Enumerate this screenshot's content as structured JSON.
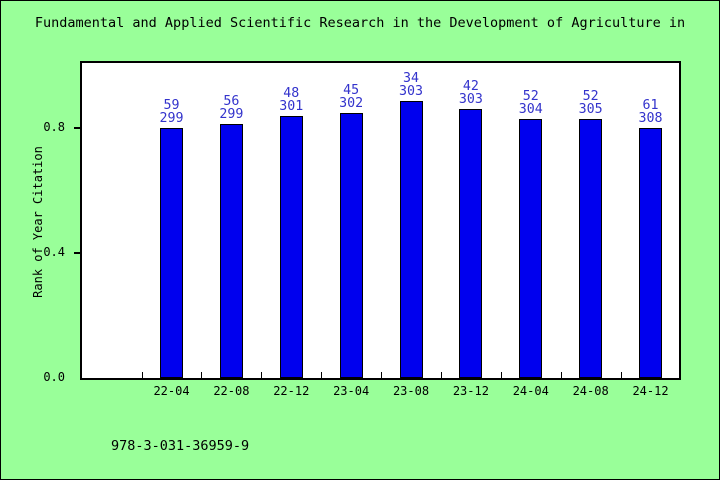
{
  "window": {
    "background_color": "#99FF99",
    "border_color": "#000000"
  },
  "title": "Fundamental and Applied Scientific Research in the Development of Agriculture in",
  "footer": {
    "isbn": "978-3-031-36959-9"
  },
  "chart_data": {
    "type": "bar",
    "title": "Fundamental and Applied Scientific Research in the Development of Agriculture in",
    "xlabel": "",
    "ylabel": "Rank of Year Citation",
    "categories": [
      "22-04",
      "22-08",
      "22-12",
      "23-04",
      "23-08",
      "23-12",
      "24-04",
      "24-08",
      "24-12"
    ],
    "values": [
      0.803,
      0.813,
      0.841,
      0.851,
      0.888,
      0.861,
      0.829,
      0.83,
      0.802
    ],
    "bar_labels_top": [
      "59",
      "56",
      "48",
      "45",
      "34",
      "42",
      "52",
      "52",
      "61"
    ],
    "bar_labels_bottom": [
      "299",
      "299",
      "301",
      "302",
      "303",
      "303",
      "304",
      "305",
      "308"
    ],
    "yticks": [
      0.0,
      0.4,
      0.8
    ],
    "ytick_labels": [
      "0.0",
      "0.4",
      "0.8"
    ],
    "ylim": [
      0,
      1.01
    ],
    "grid": false,
    "legend_position": "none",
    "plot_background": "#FFFFFF",
    "bar_color": "#0000EE",
    "bar_edge_color": "#000000",
    "bar_value_label_color": "#3333CC"
  }
}
